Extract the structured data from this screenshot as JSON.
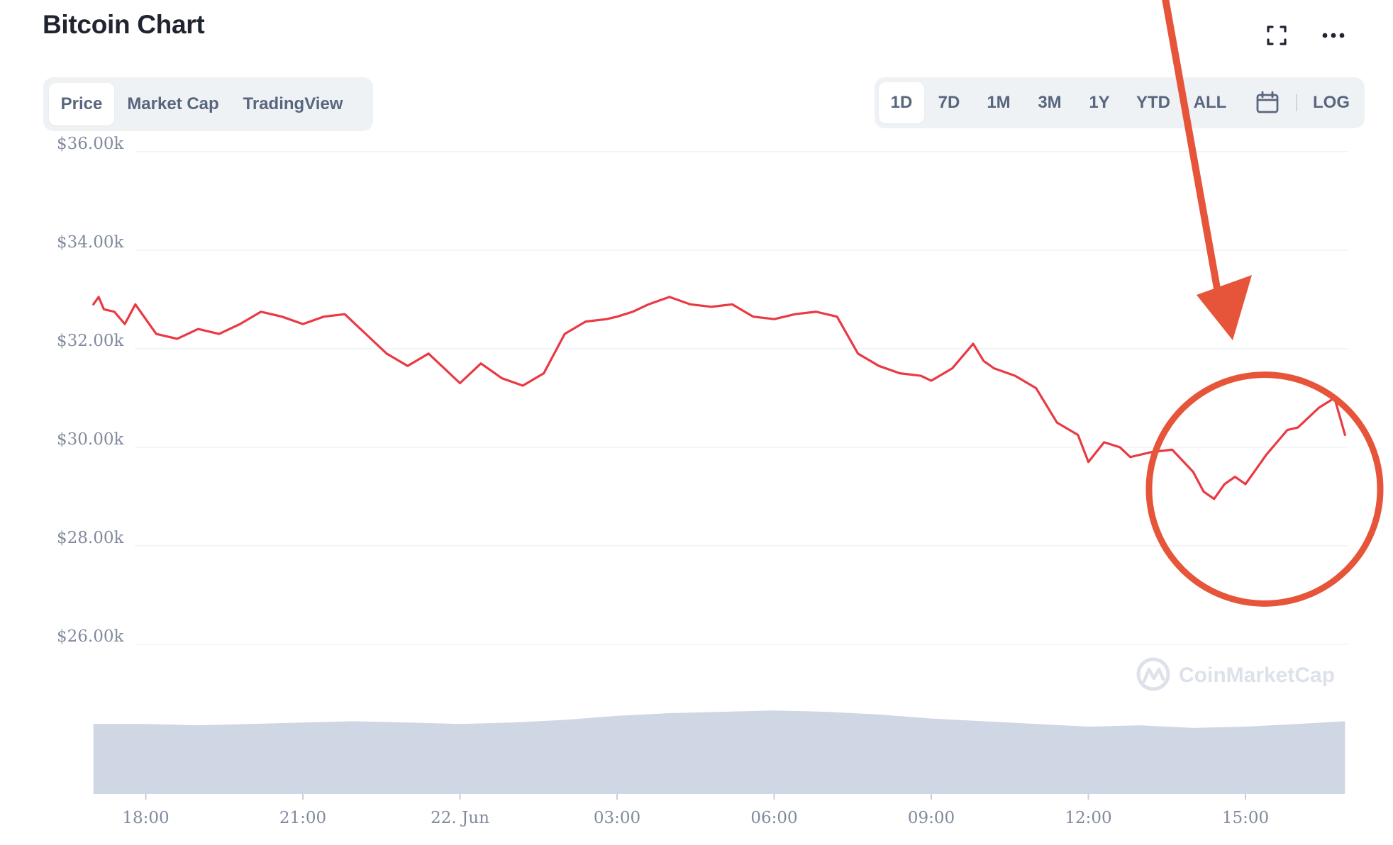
{
  "header": {
    "title": "Bitcoin Chart",
    "fullscreen_icon": "fullscreen-icon",
    "more_icon": "more-horizontal-icon"
  },
  "view_tabs": [
    {
      "label": "Price",
      "active": true
    },
    {
      "label": "Market Cap",
      "active": false
    },
    {
      "label": "TradingView",
      "active": false
    }
  ],
  "periods": [
    {
      "label": "1D",
      "active": true
    },
    {
      "label": "7D",
      "active": false
    },
    {
      "label": "1M",
      "active": false
    },
    {
      "label": "3M",
      "active": false
    },
    {
      "label": "1Y",
      "active": false
    },
    {
      "label": "YTD",
      "active": false
    },
    {
      "label": "ALL",
      "active": false
    }
  ],
  "calendar_icon": "calendar-icon",
  "log_label": "LOG",
  "watermark": {
    "text": "CoinMarketCap",
    "icon": "coinmarketcap-logo-icon"
  },
  "colors": {
    "price_line": "#ea3943",
    "volume": "#cfd6e4",
    "annotation": "#e65439",
    "grid": "#eff2f5",
    "tick_text": "#808a9d"
  },
  "annotations": {
    "arrow": "arrow-icon",
    "circle": "highlight-circle"
  },
  "chart_data": {
    "type": "line",
    "title": "Bitcoin Chart",
    "xlabel": "",
    "ylabel": "",
    "ylim": [
      24400,
      36200
    ],
    "yticks": [
      36000,
      34000,
      32000,
      30000,
      28000,
      26000
    ],
    "ytick_labels": [
      "$36.00k",
      "$34.00k",
      "$32.00k",
      "$30.00k",
      "$28.00k",
      "$26.00k"
    ],
    "x_range_hours": [
      16.95,
      40.95
    ],
    "xticks": [
      18,
      21,
      24,
      27,
      30,
      33,
      36,
      39
    ],
    "xtick_labels": [
      "18:00",
      "21:00",
      "22. Jun",
      "03:00",
      "06:00",
      "09:00",
      "12:00",
      "15:00"
    ],
    "grid": "horizontal",
    "legend": "none",
    "series": [
      {
        "x": [
          17.0,
          17.1,
          17.2,
          17.4,
          17.6,
          17.8,
          18.2,
          18.6,
          19.0,
          19.4,
          19.8,
          20.2,
          20.6,
          21.0,
          21.4,
          21.8,
          22.2,
          22.6,
          23.0,
          23.4,
          23.8,
          24.0,
          24.4,
          24.8,
          25.2,
          25.6,
          26.0,
          26.4,
          26.8,
          27.0,
          27.3,
          27.6,
          28.0,
          28.4,
          28.8,
          29.2,
          29.6,
          30.0,
          30.4,
          30.8,
          31.2,
          31.6,
          32.0,
          32.4,
          32.8,
          33.0,
          33.4,
          33.8,
          34.0,
          34.2,
          34.6,
          35.0,
          35.4,
          35.8,
          36.0,
          36.3,
          36.6,
          36.8,
          37.2,
          37.6,
          38.0,
          38.2,
          38.4,
          38.6,
          38.8,
          39.0,
          39.2,
          39.4,
          39.6,
          39.8,
          40.0,
          40.2,
          40.4,
          40.7,
          40.9
        ],
        "y": [
          32900,
          33050,
          32800,
          32750,
          32500,
          32900,
          32300,
          32200,
          32400,
          32300,
          32500,
          32750,
          32650,
          32500,
          32650,
          32700,
          32300,
          31900,
          31650,
          31900,
          31500,
          31300,
          31700,
          31400,
          31250,
          31500,
          32300,
          32550,
          32600,
          32650,
          32750,
          32900,
          33050,
          32900,
          32850,
          32900,
          32650,
          32600,
          32700,
          32750,
          32650,
          31900,
          31650,
          31500,
          31450,
          31350,
          31600,
          32100,
          31750,
          31600,
          31450,
          31200,
          30500,
          30250,
          29700,
          30100,
          30000,
          29800,
          29900,
          29950,
          29500,
          29100,
          28950,
          29250,
          29400,
          29250,
          29550,
          29850,
          30100,
          30350,
          30400,
          30600,
          30800,
          31000,
          30250
        ]
      }
    ],
    "volume": {
      "x": [
        17.0,
        18.0,
        19.0,
        20.0,
        21.0,
        22.0,
        23.0,
        24.0,
        25.0,
        26.0,
        27.0,
        28.0,
        29.0,
        30.0,
        31.0,
        32.0,
        33.0,
        34.0,
        35.0,
        36.0,
        37.0,
        38.0,
        39.0,
        40.0,
        40.9
      ],
      "values": [
        0.52,
        0.52,
        0.51,
        0.52,
        0.53,
        0.54,
        0.53,
        0.52,
        0.53,
        0.55,
        0.58,
        0.6,
        0.61,
        0.62,
        0.61,
        0.59,
        0.56,
        0.54,
        0.52,
        0.5,
        0.51,
        0.49,
        0.5,
        0.52,
        0.54
      ]
    }
  }
}
